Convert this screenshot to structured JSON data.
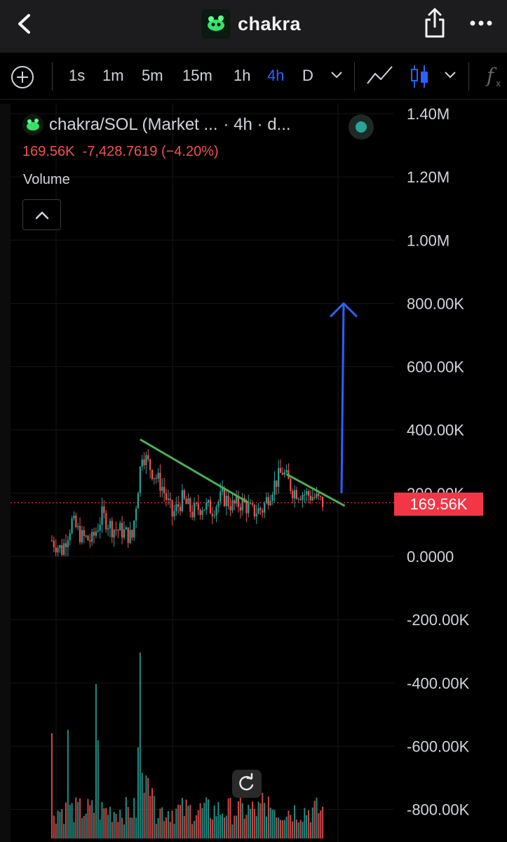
{
  "header": {
    "title": "chakra",
    "back_icon": "chevron-left-icon",
    "share_icon": "share-icon",
    "more_icon": "more-horizontal-icon"
  },
  "toolbar": {
    "timeframes": [
      "1s",
      "1m",
      "5m",
      "15m",
      "1h",
      "4h",
      "D"
    ],
    "active_timeframe": "4h",
    "icons": [
      "add-indicator-icon",
      "chevron-down-icon",
      "line-chart-icon",
      "candlestick-icon",
      "chevron-down-icon",
      "function-icon"
    ]
  },
  "legend": {
    "symbol": "chakra/SOL (Market ...",
    "interval": "· 4h · d...",
    "last_price": "169.56K",
    "change": "-7,428.7619 (−4.20%)",
    "volume_label": "Volume",
    "status_color": "#26a69a"
  },
  "price_scale": {
    "labels": [
      "1.40M",
      "1.20M",
      "1.00M",
      "800.00K",
      "600.00K",
      "400.00K",
      "200.00K",
      "0.0000",
      "-200.00K",
      "-400.00K",
      "-600.00K",
      "-800.00K"
    ],
    "current_price_label": "169.56K",
    "current_price_color": "#f23645"
  },
  "colors": {
    "up": "#26a69a",
    "down": "#ef5350",
    "accent": "#2962ff",
    "trendline": "#4caf50",
    "arrow": "#2962ff"
  },
  "chart_data": {
    "type": "candlestick",
    "pair": "chakra/SOL",
    "interval": "4h",
    "ylim": [
      -900000,
      1450000
    ],
    "last_price": 169560,
    "approx_close_path": [
      {
        "i": 0,
        "v": 50000
      },
      {
        "i": 5,
        "v": 20000
      },
      {
        "i": 10,
        "v": 110000
      },
      {
        "i": 15,
        "v": 60000
      },
      {
        "i": 20,
        "v": 50000
      },
      {
        "i": 25,
        "v": 130000
      },
      {
        "i": 30,
        "v": 90000
      },
      {
        "i": 35,
        "v": 80000
      },
      {
        "i": 40,
        "v": 60000
      },
      {
        "i": 45,
        "v": 330000
      },
      {
        "i": 50,
        "v": 270000
      },
      {
        "i": 55,
        "v": 220000
      },
      {
        "i": 60,
        "v": 130000
      },
      {
        "i": 65,
        "v": 180000
      },
      {
        "i": 70,
        "v": 140000
      },
      {
        "i": 75,
        "v": 160000
      },
      {
        "i": 80,
        "v": 150000
      },
      {
        "i": 85,
        "v": 190000
      },
      {
        "i": 90,
        "v": 160000
      },
      {
        "i": 95,
        "v": 170000
      },
      {
        "i": 100,
        "v": 140000
      },
      {
        "i": 105,
        "v": 150000
      },
      {
        "i": 110,
        "v": 220000
      },
      {
        "i": 115,
        "v": 270000
      },
      {
        "i": 120,
        "v": 210000
      },
      {
        "i": 125,
        "v": 200000
      },
      {
        "i": 130,
        "v": 190000
      },
      {
        "i": 135,
        "v": 169560
      }
    ],
    "annotations": [
      {
        "type": "trendline",
        "from": {
          "i": 44,
          "v": 370000
        },
        "to": {
          "i": 98,
          "v": 170000
        }
      },
      {
        "type": "trendline",
        "from": {
          "i": 117,
          "v": 260000
        },
        "to": {
          "i": 146,
          "v": 160000
        }
      },
      {
        "type": "arrow",
        "from": {
          "v": 200000
        },
        "to": {
          "v": 800000
        }
      }
    ]
  }
}
